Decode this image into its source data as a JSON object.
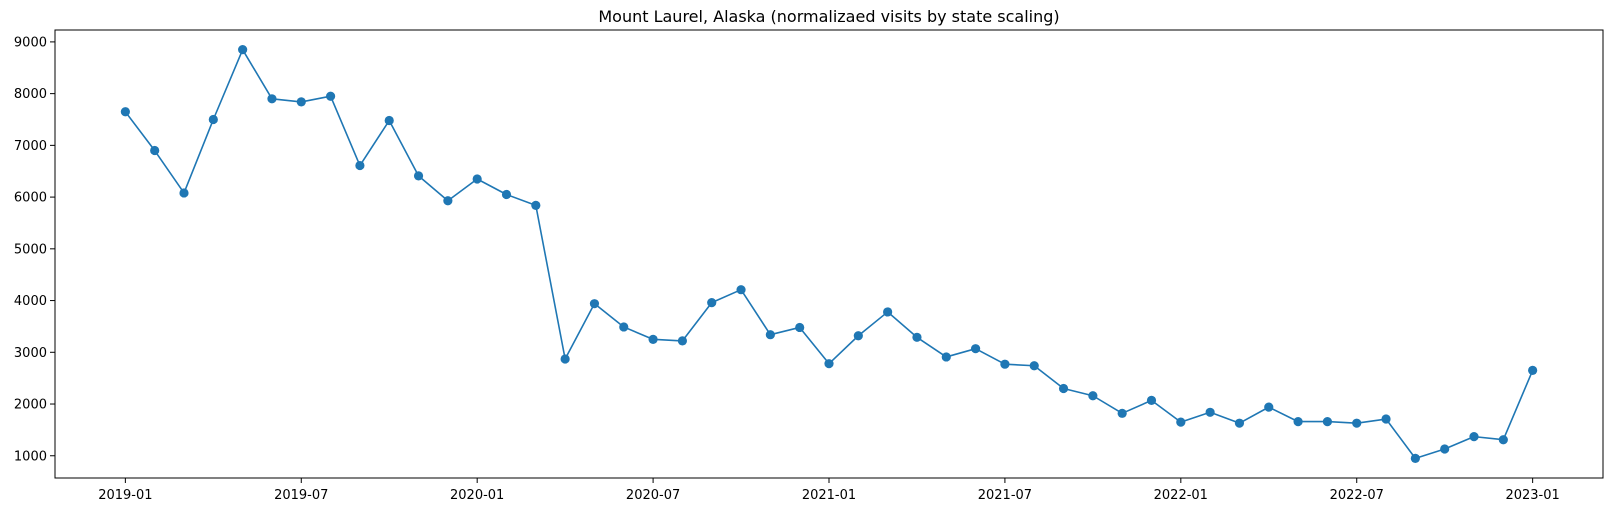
{
  "chart_data": {
    "type": "line",
    "title": "Mount Laurel, Alaska (normalizaed visits by state scaling)",
    "xlabel": "",
    "ylabel": "",
    "grid": false,
    "legend": "none",
    "marker": "circle",
    "color": "#1f77b4",
    "x_tick_labels": [
      "2019-01",
      "2019-07",
      "2020-01",
      "2020-07",
      "2021-01",
      "2021-07",
      "2022-01",
      "2022-07",
      "2023-01"
    ],
    "y_ticks": [
      1000,
      2000,
      3000,
      4000,
      5000,
      6000,
      7000,
      8000,
      9000
    ],
    "ylim": [
      570,
      9230
    ],
    "x_start_month": "2019-01",
    "x_end_month": "2023-01",
    "x_padding_months": 2.4,
    "series": [
      {
        "name": "visits",
        "values": [
          7650,
          6900,
          6080,
          7500,
          8850,
          7900,
          7840,
          7950,
          6610,
          7480,
          6410,
          5930,
          6350,
          6050,
          5840,
          2870,
          3940,
          3490,
          3250,
          3220,
          3960,
          4210,
          3340,
          3480,
          2780,
          3320,
          3780,
          3290,
          2910,
          3070,
          2770,
          2740,
          2300,
          2160,
          1820,
          2070,
          1650,
          1840,
          1630,
          1940,
          1660,
          1660,
          1630,
          1710,
          950,
          1130,
          1370,
          1310,
          2650
        ]
      }
    ]
  }
}
